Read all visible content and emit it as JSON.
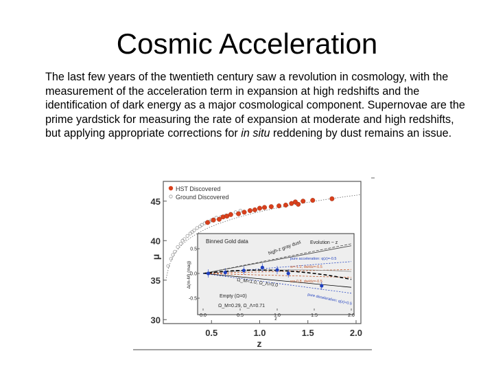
{
  "slide": {
    "title": "Cosmic Acceleration",
    "body_pre": "The last few years of the twentieth century saw a revolution in cosmology, with the measurement of the acceleration term in expansion at high redshifts and the identification of dark energy as a major cosmological component. Supernovae are the prime yardstick for measuring the rate of expansion at moderate and high redshifts, but applying appropriate corrections for ",
    "body_italic": "in situ",
    "body_post": " reddening by dust remains an issue."
  },
  "colors": {
    "hst": "#d9401c",
    "ground": "#9a9a9a",
    "gold": "#1f3fbf",
    "inset_bg": "#eeeeee"
  },
  "chart_data": [
    {
      "type": "scatter",
      "title": "",
      "xlabel": "z",
      "ylabel": "μ",
      "xlim": [
        0.0,
        2.05
      ],
      "ylim": [
        29.5,
        47.5
      ],
      "x_ticks": [
        "0.5",
        "1.0",
        "1.5",
        "2.0"
      ],
      "y_ticks": [
        "30",
        "35",
        "40",
        "45"
      ],
      "legend": {
        "placement": "top-left",
        "entries": [
          "HST Discovered",
          "Ground Discovered"
        ]
      },
      "series": [
        {
          "name": "HST Discovered",
          "points": [
            [
              0.46,
              42.3
            ],
            [
              0.52,
              42.6
            ],
            [
              0.58,
              42.7
            ],
            [
              0.62,
              43.0
            ],
            [
              0.66,
              43.1
            ],
            [
              0.7,
              43.3
            ],
            [
              0.78,
              43.4
            ],
            [
              0.84,
              43.6
            ],
            [
              0.9,
              43.8
            ],
            [
              0.95,
              43.9
            ],
            [
              1.0,
              44.1
            ],
            [
              1.05,
              44.2
            ],
            [
              1.12,
              44.3
            ],
            [
              1.2,
              44.4
            ],
            [
              1.27,
              44.5
            ],
            [
              1.33,
              44.7
            ],
            [
              1.37,
              44.9
            ],
            [
              1.4,
              44.6
            ],
            [
              1.45,
              45.0
            ],
            [
              1.55,
              45.1
            ],
            [
              1.75,
              45.3
            ]
          ]
        },
        {
          "name": "Ground Discovered",
          "points": [
            [
              0.05,
              36.8
            ],
            [
              0.08,
              37.7
            ],
            [
              0.1,
              38.2
            ],
            [
              0.12,
              38.6
            ],
            [
              0.15,
              39.2
            ],
            [
              0.18,
              39.6
            ],
            [
              0.2,
              40.0
            ],
            [
              0.22,
              40.2
            ],
            [
              0.25,
              40.6
            ],
            [
              0.28,
              40.9
            ],
            [
              0.3,
              41.1
            ],
            [
              0.32,
              41.3
            ],
            [
              0.35,
              41.6
            ],
            [
              0.38,
              41.8
            ],
            [
              0.4,
              42.0
            ],
            [
              0.43,
              42.2
            ],
            [
              0.45,
              42.3
            ],
            [
              0.48,
              42.4
            ],
            [
              0.5,
              42.6
            ],
            [
              0.52,
              42.7
            ],
            [
              0.55,
              42.9
            ],
            [
              0.6,
              43.0
            ],
            [
              0.65,
              43.2
            ],
            [
              0.7,
              43.4
            ],
            [
              0.75,
              43.6
            ],
            [
              0.8,
              43.8
            ]
          ]
        }
      ]
    },
    {
      "type": "line",
      "title": "Binned Gold data",
      "xlabel": "z",
      "ylabel": "Δ(m-M) (mag)",
      "xlim": [
        0.0,
        2.0
      ],
      "ylim": [
        -0.75,
        0.75
      ],
      "x_ticks": [
        "0.0",
        "0.5",
        "1.0",
        "1.5",
        "2.0"
      ],
      "y_ticks": [
        "0.5",
        "0.0",
        "-0.5"
      ],
      "series": [
        {
          "name": "Binned Gold data",
          "points": [
            [
              0.07,
              0.0
            ],
            [
              0.3,
              0.02
            ],
            [
              0.55,
              0.06
            ],
            [
              0.8,
              0.12
            ],
            [
              1.0,
              0.07
            ],
            [
              1.15,
              0.0
            ],
            [
              1.6,
              -0.25
            ]
          ]
        }
      ],
      "annotations": [
        "high-z gray dust",
        "Evolution ~ z",
        "pure acceleration: q(z)=-0.5",
        "w=-1.2, dw/dz=-0.5",
        "w=-0.8, dw/dz=-0.5",
        "Ω_M=1.0, Ω_Λ=0.0",
        "pure deceleration: q(z)=0.5",
        "Empty (Ω=0)",
        "Ω_M=0.29, Ω_Λ=0.71"
      ]
    }
  ]
}
